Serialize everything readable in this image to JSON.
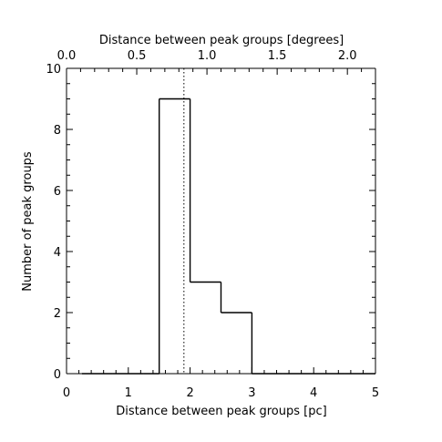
{
  "chart_data": {
    "type": "histogram",
    "title": "",
    "xlabel": "Distance between peak groups [pc]",
    "x2label": "Distance between peak groups [degrees]",
    "ylabel": "Number of peak groups",
    "xlim": [
      0,
      5
    ],
    "x2lim": [
      0.0,
      2.2
    ],
    "ylim": [
      0,
      10
    ],
    "x_ticks": [
      "0",
      "1",
      "2",
      "3",
      "4",
      "5"
    ],
    "x2_ticks": [
      "0.0",
      "0.5",
      "1.0",
      "1.5",
      "2.0"
    ],
    "y_ticks": [
      "0",
      "2",
      "4",
      "6",
      "8",
      "10"
    ],
    "bins": [
      {
        "x0": 0.25,
        "x1": 0.75,
        "count": 0
      },
      {
        "x0": 0.75,
        "x1": 1.25,
        "count": 0
      },
      {
        "x0": 1.25,
        "x1": 1.5,
        "count": 0
      },
      {
        "x0": 1.5,
        "x1": 2.0,
        "count": 9
      },
      {
        "x0": 2.0,
        "x1": 2.5,
        "count": 3
      },
      {
        "x0": 2.5,
        "x1": 3.0,
        "count": 2
      },
      {
        "x0": 3.0,
        "x1": 3.5,
        "count": 0
      },
      {
        "x0": 3.5,
        "x1": 4.0,
        "count": 0
      },
      {
        "x0": 4.0,
        "x1": 4.5,
        "count": 0
      },
      {
        "x0": 4.5,
        "x1": 5.0,
        "count": 0
      }
    ],
    "reference_line_x": 1.9,
    "reference_line_style": "dotted",
    "colors": {
      "axis": "#000000",
      "histogram": "#000000"
    }
  }
}
